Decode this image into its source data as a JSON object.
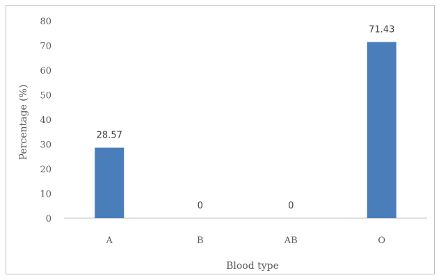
{
  "chart_data": {
    "type": "bar",
    "categories": [
      "A",
      "B",
      "AB",
      "O"
    ],
    "values": [
      28.57,
      0,
      0,
      71.43
    ],
    "data_labels": [
      "28.57",
      "0",
      "0",
      "71.43"
    ],
    "title": "",
    "xlabel": "Blood type",
    "ylabel": "Percentage (%)",
    "ylim": [
      0,
      80
    ],
    "yticks": [
      0,
      10,
      20,
      30,
      40,
      50,
      60,
      70,
      80
    ],
    "grid": false,
    "legend": "none",
    "bar_color": "#4a7ebb"
  }
}
